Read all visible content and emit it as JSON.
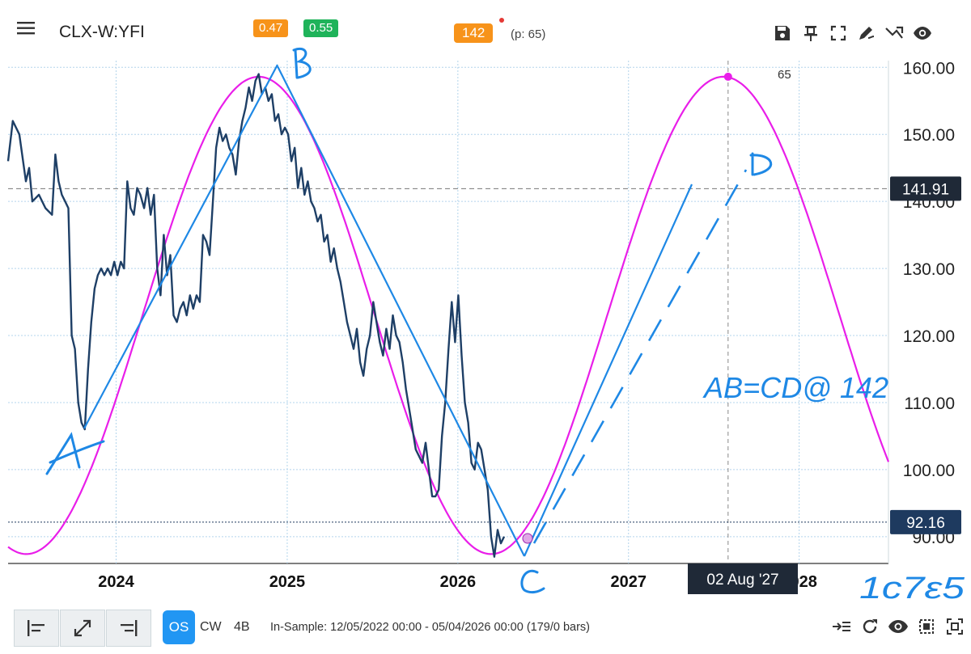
{
  "header": {
    "symbol": "CLX-W:YFI",
    "badge_left": "0.47",
    "badge_right": "0.55",
    "period_badge": "142",
    "period_text": "(p: 65)",
    "toolbar_icons": [
      "save-icon",
      "pin-icon",
      "fullscreen-icon",
      "draw-icon",
      "share-icon",
      "eye-icon"
    ]
  },
  "chart_data": {
    "type": "line",
    "title": "",
    "xlabel": "",
    "ylabel": "",
    "x_ticks": [
      "2024",
      "2025",
      "2026",
      "2027",
      "2028"
    ],
    "y_ticks": [
      "90.00",
      "100.00",
      "110.00",
      "120.00",
      "130.00",
      "140.00",
      "150.00",
      "160.00"
    ],
    "ylim": [
      86,
      161
    ],
    "xlim": [
      "2023-05-15",
      "2028-07-10"
    ],
    "grid": true,
    "series": [
      {
        "color": "#1e3f66",
        "points": [
          [
            "2023-05-15",
            146
          ],
          [
            "2023-05-25",
            152
          ],
          [
            "2023-06-08",
            150
          ],
          [
            "2023-06-22",
            143
          ],
          [
            "2023-06-29",
            145
          ],
          [
            "2023-07-06",
            140
          ],
          [
            "2023-07-20",
            141
          ],
          [
            "2023-08-03",
            139
          ],
          [
            "2023-08-17",
            138
          ],
          [
            "2023-08-24",
            147
          ],
          [
            "2023-08-31",
            143
          ],
          [
            "2023-09-07",
            141
          ],
          [
            "2023-09-14",
            140
          ],
          [
            "2023-09-21",
            139
          ],
          [
            "2023-09-28",
            120
          ],
          [
            "2023-10-05",
            118
          ],
          [
            "2023-10-12",
            110
          ],
          [
            "2023-10-19",
            107
          ],
          [
            "2023-10-26",
            106
          ],
          [
            "2023-11-02",
            115
          ],
          [
            "2023-11-09",
            122
          ],
          [
            "2023-11-16",
            127
          ],
          [
            "2023-11-23",
            129
          ],
          [
            "2023-11-30",
            130
          ],
          [
            "2023-12-07",
            129
          ],
          [
            "2023-12-14",
            130
          ],
          [
            "2023-12-21",
            129
          ],
          [
            "2023-12-28",
            131
          ],
          [
            "2024-01-04",
            129
          ],
          [
            "2024-01-11",
            131
          ],
          [
            "2024-01-18",
            130
          ],
          [
            "2024-01-25",
            143
          ],
          [
            "2024-02-01",
            139
          ],
          [
            "2024-02-08",
            138
          ],
          [
            "2024-02-15",
            142
          ],
          [
            "2024-02-22",
            141
          ],
          [
            "2024-03-01",
            139
          ],
          [
            "2024-03-08",
            142
          ],
          [
            "2024-03-15",
            138
          ],
          [
            "2024-03-22",
            141
          ],
          [
            "2024-03-29",
            130
          ],
          [
            "2024-04-05",
            126
          ],
          [
            "2024-04-12",
            135
          ],
          [
            "2024-04-19",
            129
          ],
          [
            "2024-04-26",
            132
          ],
          [
            "2024-05-03",
            123
          ],
          [
            "2024-05-10",
            122
          ],
          [
            "2024-05-17",
            124
          ],
          [
            "2024-05-24",
            125
          ],
          [
            "2024-05-31",
            123
          ],
          [
            "2024-06-07",
            126
          ],
          [
            "2024-06-14",
            124
          ],
          [
            "2024-06-21",
            126
          ],
          [
            "2024-06-28",
            125
          ],
          [
            "2024-07-05",
            135
          ],
          [
            "2024-07-12",
            134
          ],
          [
            "2024-07-19",
            132
          ],
          [
            "2024-07-26",
            140
          ],
          [
            "2024-08-02",
            148
          ],
          [
            "2024-08-09",
            151
          ],
          [
            "2024-08-16",
            149
          ],
          [
            "2024-08-23",
            150
          ],
          [
            "2024-08-30",
            148
          ],
          [
            "2024-09-06",
            147
          ],
          [
            "2024-09-13",
            144
          ],
          [
            "2024-09-20",
            149
          ],
          [
            "2024-09-27",
            152
          ],
          [
            "2024-10-04",
            154
          ],
          [
            "2024-10-11",
            157
          ],
          [
            "2024-10-18",
            155
          ],
          [
            "2024-10-25",
            158
          ],
          [
            "2024-11-01",
            159
          ],
          [
            "2024-11-08",
            156
          ],
          [
            "2024-11-15",
            157
          ],
          [
            "2024-11-22",
            155
          ],
          [
            "2024-11-29",
            156
          ],
          [
            "2024-12-06",
            152
          ],
          [
            "2024-12-13",
            153
          ],
          [
            "2024-12-20",
            150
          ],
          [
            "2024-12-27",
            151
          ],
          [
            "2025-01-03",
            150
          ],
          [
            "2025-01-10",
            146
          ],
          [
            "2025-01-17",
            148
          ],
          [
            "2025-01-24",
            142
          ],
          [
            "2025-01-31",
            145
          ],
          [
            "2025-02-07",
            141
          ],
          [
            "2025-02-14",
            143
          ],
          [
            "2025-02-21",
            140
          ],
          [
            "2025-02-28",
            139
          ],
          [
            "2025-03-07",
            137
          ],
          [
            "2025-03-14",
            138
          ],
          [
            "2025-03-21",
            134
          ],
          [
            "2025-03-28",
            135
          ],
          [
            "2025-04-04",
            131
          ],
          [
            "2025-04-11",
            133
          ],
          [
            "2025-04-18",
            130
          ],
          [
            "2025-04-25",
            128
          ],
          [
            "2025-05-02",
            125
          ],
          [
            "2025-05-09",
            122
          ],
          [
            "2025-05-16",
            120
          ],
          [
            "2025-05-23",
            118
          ],
          [
            "2025-05-30",
            121
          ],
          [
            "2025-06-06",
            116
          ],
          [
            "2025-06-13",
            114
          ],
          [
            "2025-06-20",
            118
          ],
          [
            "2025-06-27",
            120
          ],
          [
            "2025-07-04",
            125
          ],
          [
            "2025-07-11",
            122
          ],
          [
            "2025-07-18",
            119
          ],
          [
            "2025-07-25",
            117
          ],
          [
            "2025-08-01",
            121
          ],
          [
            "2025-08-08",
            118
          ],
          [
            "2025-08-15",
            123
          ],
          [
            "2025-08-22",
            120
          ],
          [
            "2025-08-29",
            119
          ],
          [
            "2025-09-05",
            116
          ],
          [
            "2025-09-12",
            112
          ],
          [
            "2025-09-19",
            109
          ],
          [
            "2025-09-26",
            106
          ],
          [
            "2025-10-03",
            103
          ],
          [
            "2025-10-10",
            102
          ],
          [
            "2025-10-17",
            101
          ],
          [
            "2025-10-24",
            104
          ],
          [
            "2025-10-31",
            100
          ],
          [
            "2025-11-07",
            96
          ],
          [
            "2025-11-14",
            96
          ],
          [
            "2025-11-21",
            97
          ],
          [
            "2025-11-28",
            105
          ],
          [
            "2025-12-05",
            110
          ],
          [
            "2025-12-12",
            118
          ],
          [
            "2025-12-19",
            125
          ],
          [
            "2025-12-26",
            119
          ],
          [
            "2026-01-02",
            126
          ],
          [
            "2026-01-09",
            117
          ],
          [
            "2026-01-16",
            110
          ],
          [
            "2026-01-23",
            107
          ],
          [
            "2026-01-30",
            101
          ],
          [
            "2026-02-06",
            100
          ],
          [
            "2026-02-13",
            104
          ],
          [
            "2026-02-20",
            103
          ],
          [
            "2026-02-27",
            100
          ],
          [
            "2026-03-06",
            97
          ],
          [
            "2026-03-13",
            90
          ],
          [
            "2026-03-20",
            87
          ],
          [
            "2026-03-27",
            91
          ],
          [
            "2026-04-03",
            89
          ],
          [
            "2026-04-10",
            90
          ]
        ]
      },
      {
        "color": "#e91ee9",
        "shape": "cycle",
        "period_weeks": 142,
        "trough_date": "2026-03-13",
        "peak_date": "2027-08-02",
        "min": 87.4,
        "max": 158.6
      }
    ],
    "price_lines": [
      {
        "value": 141.91,
        "label": "141.91"
      },
      {
        "value": 92.16,
        "label": "92.16"
      }
    ],
    "crosshair": {
      "date": "2027-08-02",
      "label": "02 Aug '27"
    },
    "peak_label": "65",
    "annotations": {
      "labels": [
        "A",
        "B",
        "C",
        "D"
      ],
      "note": "AB=CD@ 142",
      "signature": "1c7ε5"
    },
    "accent_colors": {
      "price": "#1e3f66",
      "cycle": "#e91ee9",
      "drawing": "#1e88e5",
      "label_bg": "#1f2937",
      "price_tag": "#1e3a5f"
    }
  },
  "footer": {
    "left_icons": [
      "align-left-icon",
      "expand-icon",
      "align-right-icon"
    ],
    "os": "OS",
    "cw": "CW",
    "b4": "4B",
    "insample": "In-Sample: 12/05/2022 00:00 - 05/04/2026 00:00 (179/0 bars)",
    "right_icons": [
      "indent-icon",
      "refresh-icon",
      "eye-icon",
      "select-icon",
      "focus-icon"
    ]
  }
}
